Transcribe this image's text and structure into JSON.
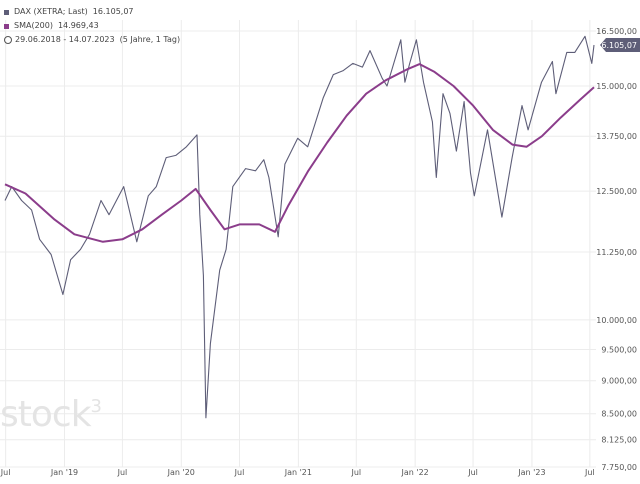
{
  "legend": {
    "series1_label": "DAX (XETRA; Last)",
    "series1_value": "16.105,07",
    "series2_label": "SMA(200)",
    "series2_value": "14.969,43",
    "range_label": "29.06.2018 - 14.07.2023",
    "range_suffix": "(5 Jahre, 1 Tag)"
  },
  "watermark": {
    "text": "stock",
    "sup": "3"
  },
  "last_value_badge": "16.105,07",
  "colors": {
    "price": "#5e5e78",
    "sma": "#8b3d8b",
    "badge": "#5e5e78",
    "grid": "#ececec"
  },
  "chart_data": {
    "type": "line",
    "y_scale": "log",
    "ylim": [
      7750,
      16500
    ],
    "xlim": [
      "2018-06-29",
      "2023-07-14"
    ],
    "y_ticks": [
      {
        "value": 16500,
        "label": "16.500,00"
      },
      {
        "value": 15000,
        "label": "15.000,00"
      },
      {
        "value": 13750,
        "label": "13.750,00"
      },
      {
        "value": 12500,
        "label": "12.500,00"
      },
      {
        "value": 11250,
        "label": "11.250,00"
      },
      {
        "value": 10000,
        "label": "10.000,00"
      },
      {
        "value": 9500,
        "label": "9.500,00"
      },
      {
        "value": 9000,
        "label": "9.000,00"
      },
      {
        "value": 8500,
        "label": "8.500,00"
      },
      {
        "value": 8125,
        "label": "8.125,00"
      },
      {
        "value": 7750,
        "label": "7.750,00"
      }
    ],
    "x_ticks": [
      {
        "date": "2018-07-01",
        "label": "Jul"
      },
      {
        "date": "2019-01-01",
        "label": "Jan '19"
      },
      {
        "date": "2019-07-01",
        "label": "Jul"
      },
      {
        "date": "2020-01-01",
        "label": "Jan '20"
      },
      {
        "date": "2020-07-01",
        "label": "Jul"
      },
      {
        "date": "2021-01-01",
        "label": "Jan '21"
      },
      {
        "date": "2021-07-01",
        "label": "Jul"
      },
      {
        "date": "2022-01-01",
        "label": "Jan '22"
      },
      {
        "date": "2022-07-01",
        "label": "Jul"
      },
      {
        "date": "2023-01-01",
        "label": "Jan '23"
      },
      {
        "date": "2023-07-01",
        "label": "Jul"
      }
    ],
    "series": [
      {
        "name": "DAX (XETRA; Last)",
        "points": [
          [
            "2018-06-29",
            12300
          ],
          [
            "2018-07-20",
            12600
          ],
          [
            "2018-08-20",
            12300
          ],
          [
            "2018-09-20",
            12100
          ],
          [
            "2018-10-15",
            11500
          ],
          [
            "2018-11-20",
            11200
          ],
          [
            "2018-12-27",
            10450
          ],
          [
            "2019-01-20",
            11100
          ],
          [
            "2019-02-20",
            11300
          ],
          [
            "2019-03-20",
            11600
          ],
          [
            "2019-04-25",
            12300
          ],
          [
            "2019-05-20",
            12000
          ],
          [
            "2019-06-20",
            12400
          ],
          [
            "2019-07-05",
            12600
          ],
          [
            "2019-08-15",
            11450
          ],
          [
            "2019-09-20",
            12400
          ],
          [
            "2019-10-15",
            12600
          ],
          [
            "2019-11-15",
            13250
          ],
          [
            "2019-12-15",
            13300
          ],
          [
            "2020-01-17",
            13500
          ],
          [
            "2020-02-19",
            13780
          ],
          [
            "2020-02-28",
            12000
          ],
          [
            "2020-03-10",
            10800
          ],
          [
            "2020-03-18",
            8440
          ],
          [
            "2020-04-01",
            9600
          ],
          [
            "2020-04-30",
            10900
          ],
          [
            "2020-05-20",
            11300
          ],
          [
            "2020-06-10",
            12600
          ],
          [
            "2020-07-20",
            13000
          ],
          [
            "2020-08-20",
            12950
          ],
          [
            "2020-09-15",
            13200
          ],
          [
            "2020-10-01",
            12800
          ],
          [
            "2020-10-30",
            11550
          ],
          [
            "2020-11-20",
            13100
          ],
          [
            "2020-12-30",
            13700
          ],
          [
            "2021-01-30",
            13500
          ],
          [
            "2021-02-20",
            14000
          ],
          [
            "2021-03-20",
            14700
          ],
          [
            "2021-04-20",
            15300
          ],
          [
            "2021-05-20",
            15400
          ],
          [
            "2021-06-20",
            15600
          ],
          [
            "2021-07-20",
            15500
          ],
          [
            "2021-08-13",
            15950
          ],
          [
            "2021-09-20",
            15200
          ],
          [
            "2021-10-05",
            15000
          ],
          [
            "2021-11-17",
            16250
          ],
          [
            "2021-11-30",
            15100
          ],
          [
            "2021-12-15",
            15600
          ],
          [
            "2022-01-05",
            16250
          ],
          [
            "2022-01-27",
            15100
          ],
          [
            "2022-02-24",
            14100
          ],
          [
            "2022-03-08",
            12800
          ],
          [
            "2022-03-29",
            14800
          ],
          [
            "2022-04-20",
            14300
          ],
          [
            "2022-05-10",
            13400
          ],
          [
            "2022-06-03",
            14600
          ],
          [
            "2022-06-23",
            12900
          ],
          [
            "2022-07-05",
            12400
          ],
          [
            "2022-08-15",
            13900
          ],
          [
            "2022-09-29",
            11950
          ],
          [
            "2022-10-31",
            13250
          ],
          [
            "2022-12-01",
            14500
          ],
          [
            "2022-12-20",
            13900
          ],
          [
            "2023-01-31",
            15100
          ],
          [
            "2023-03-06",
            15650
          ],
          [
            "2023-03-17",
            14800
          ],
          [
            "2023-04-20",
            15900
          ],
          [
            "2023-05-15",
            15900
          ],
          [
            "2023-06-16",
            16350
          ],
          [
            "2023-07-07",
            15600
          ],
          [
            "2023-07-14",
            16105.07
          ]
        ]
      },
      {
        "name": "SMA(200)",
        "points": [
          [
            "2018-06-29",
            12650
          ],
          [
            "2018-09-01",
            12450
          ],
          [
            "2018-12-01",
            11900
          ],
          [
            "2019-02-01",
            11600
          ],
          [
            "2019-05-01",
            11450
          ],
          [
            "2019-07-01",
            11500
          ],
          [
            "2019-09-01",
            11700
          ],
          [
            "2019-11-01",
            12000
          ],
          [
            "2020-01-01",
            12300
          ],
          [
            "2020-02-15",
            12550
          ],
          [
            "2020-04-01",
            12100
          ],
          [
            "2020-05-15",
            11700
          ],
          [
            "2020-07-01",
            11800
          ],
          [
            "2020-09-01",
            11800
          ],
          [
            "2020-10-20",
            11650
          ],
          [
            "2020-12-01",
            12200
          ],
          [
            "2021-02-01",
            12950
          ],
          [
            "2021-04-01",
            13600
          ],
          [
            "2021-06-01",
            14250
          ],
          [
            "2021-08-01",
            14800
          ],
          [
            "2021-10-01",
            15150
          ],
          [
            "2021-12-10",
            15450
          ],
          [
            "2022-01-15",
            15580
          ],
          [
            "2022-03-01",
            15380
          ],
          [
            "2022-05-01",
            15000
          ],
          [
            "2022-07-01",
            14500
          ],
          [
            "2022-09-01",
            13900
          ],
          [
            "2022-11-01",
            13550
          ],
          [
            "2022-12-15",
            13500
          ],
          [
            "2023-02-01",
            13750
          ],
          [
            "2023-04-01",
            14200
          ],
          [
            "2023-06-01",
            14650
          ],
          [
            "2023-07-14",
            14969.43
          ]
        ]
      }
    ]
  }
}
